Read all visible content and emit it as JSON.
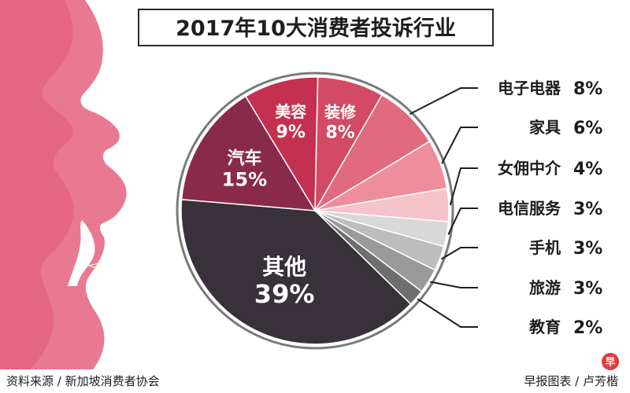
{
  "chart_data": {
    "type": "pie",
    "title": "2017年10大消费者投诉行业",
    "unit": "%",
    "slices": [
      {
        "name": "电子电器",
        "value": 8,
        "color": "#e26a7e"
      },
      {
        "name": "家具",
        "value": 6,
        "color": "#ee8d9c"
      },
      {
        "name": "女佣中介",
        "value": 4,
        "color": "#f6c3cb"
      },
      {
        "name": "电信服务",
        "value": 3,
        "color": "#d8d8d8"
      },
      {
        "name": "手机",
        "value": 3,
        "color": "#bdbdbd"
      },
      {
        "name": "旅游",
        "value": 3,
        "color": "#9a9a9a"
      },
      {
        "name": "教育",
        "value": 2,
        "color": "#6e6e6e"
      },
      {
        "name": "其他",
        "value": 39,
        "color": "#38313a"
      },
      {
        "name": "汽车",
        "value": 15,
        "color": "#8a2a4a"
      },
      {
        "name": "美容",
        "value": 9,
        "color": "#c4304f"
      },
      {
        "name": "装修",
        "value": 8,
        "color": "#d34a64"
      }
    ],
    "inside_labels": [
      "其他",
      "汽车",
      "美容",
      "装修"
    ],
    "legend_labels": [
      "电子电器",
      "家具",
      "女佣中介",
      "电信服务",
      "手机",
      "旅游",
      "教育"
    ]
  },
  "footer": {
    "source": "资料来源 / 新加坡消费者协会",
    "credit": "早报图表 / 卢芳楷",
    "logo_char": "早"
  },
  "colors": {
    "face_dark": "#d43c5e",
    "face_light": "#e56a85",
    "accent": "#c4304f",
    "text": "#1e1e1e"
  }
}
